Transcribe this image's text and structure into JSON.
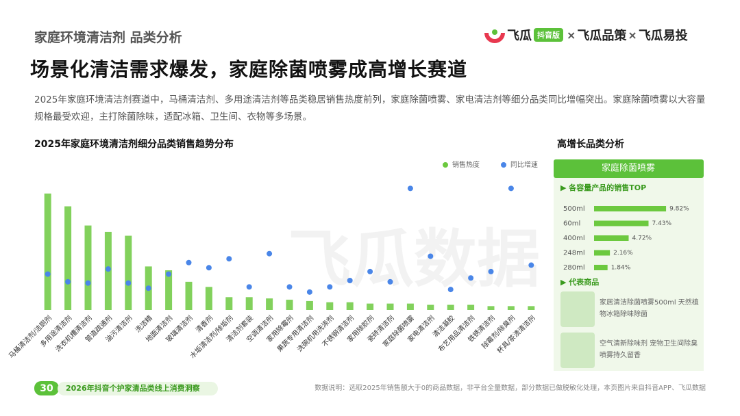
{
  "header": "家庭环境清洁剂 品类分析",
  "logo": [
    "飞瓜",
    "抖音版",
    "×",
    "飞瓜品策",
    "×",
    "飞瓜易投"
  ],
  "headline": "场景化清洁需求爆发，家庭除菌喷雾成高增长赛道",
  "paragraph": "2025年家庭环境清洁剂赛道中，马桶清洁剂、多用途清洁剂等品类稳居销售热度前列，家庭除菌喷雾、家电清洁剂等细分品类同比增幅突出。家庭除菌喷雾以大容量规格最受欢迎，主打除菌除味，适配冰箱、卫生间、衣物等多场景。",
  "watermark": "飞瓜数据",
  "panel": {
    "title": "高增长品类分析",
    "box_title": "家庭除菌喷雾",
    "section1": "▶ 各容量产品的销售TOP",
    "section2": "▶ 代表商品",
    "products": [
      "家居清洁除菌喷雾500ml 天然植物冰箱除味除菌",
      "空气清新除味剂 宠物卫生间除臭喷雾持久留香"
    ]
  },
  "footer": {
    "page": "30",
    "report": "2026年抖音个护家清品类线上消费洞察",
    "note": "数据说明：选取2025年销售额大于0的商品数据，非平台全量数据，部分数据已做脱敏化处理，本页图片来自抖音APP、飞瓜数据"
  },
  "chart_data": [
    {
      "type": "bar",
      "title": "2025年家庭环境清洁剂细分品类销售趋势分布",
      "categories": [
        "马桶清洁剂/洁厕剂",
        "多用途清洁剂",
        "洗衣机槽清洁剂",
        "管道疏通剂",
        "油污清洁剂",
        "洗洁精",
        "地面清洁剂",
        "玻璃清洁剂",
        "清香剂",
        "水垢清洁剂/除垢剂",
        "清洁剂套装",
        "空调清洁剂",
        "家用除霉剂",
        "果蔬专用清洁剂",
        "洗碗机用洗涤剂",
        "不锈钢清洁剂",
        "家用除胶剂",
        "瓷砖清洁剂",
        "家庭除菌喷雾",
        "家电清洁剂",
        "清洁凝胶",
        "布艺用品清洁剂",
        "铁锈清洁剂",
        "除霉剂/除臭剂",
        "杯具/茶渍清洁剂"
      ],
      "series": [
        {
          "name": "销售热度",
          "color": "#6cc93f",
          "values": [
            91,
            81,
            66,
            61,
            58,
            34,
            31,
            22,
            18,
            10,
            10,
            9,
            8,
            7,
            6,
            6,
            5,
            5,
            5,
            4,
            4,
            4,
            3,
            3,
            3
          ]
        },
        {
          "name": "同比增速",
          "color": "#4a86e8",
          "axis": "y2",
          "values": [
            28,
            22,
            21,
            32,
            21,
            17,
            28,
            37,
            33,
            40,
            18,
            44,
            18,
            14,
            18,
            23,
            30,
            22,
            95,
            42,
            16,
            25,
            30,
            95,
            35
          ]
        }
      ],
      "ylim": [
        0,
        100
      ],
      "y2lim": [
        0,
        100
      ],
      "legend": "top-right"
    },
    {
      "type": "hbar",
      "categories": [
        "500ml",
        "60ml",
        "400ml",
        "248ml",
        "280ml"
      ],
      "values": [
        9.82,
        7.43,
        4.72,
        2.16,
        1.84
      ],
      "value_labels": [
        "9.82%",
        "7.43%",
        "4.72%",
        "2.16%",
        "1.84%"
      ],
      "color": "#6cc93f",
      "xlim": [
        0,
        10
      ]
    }
  ]
}
